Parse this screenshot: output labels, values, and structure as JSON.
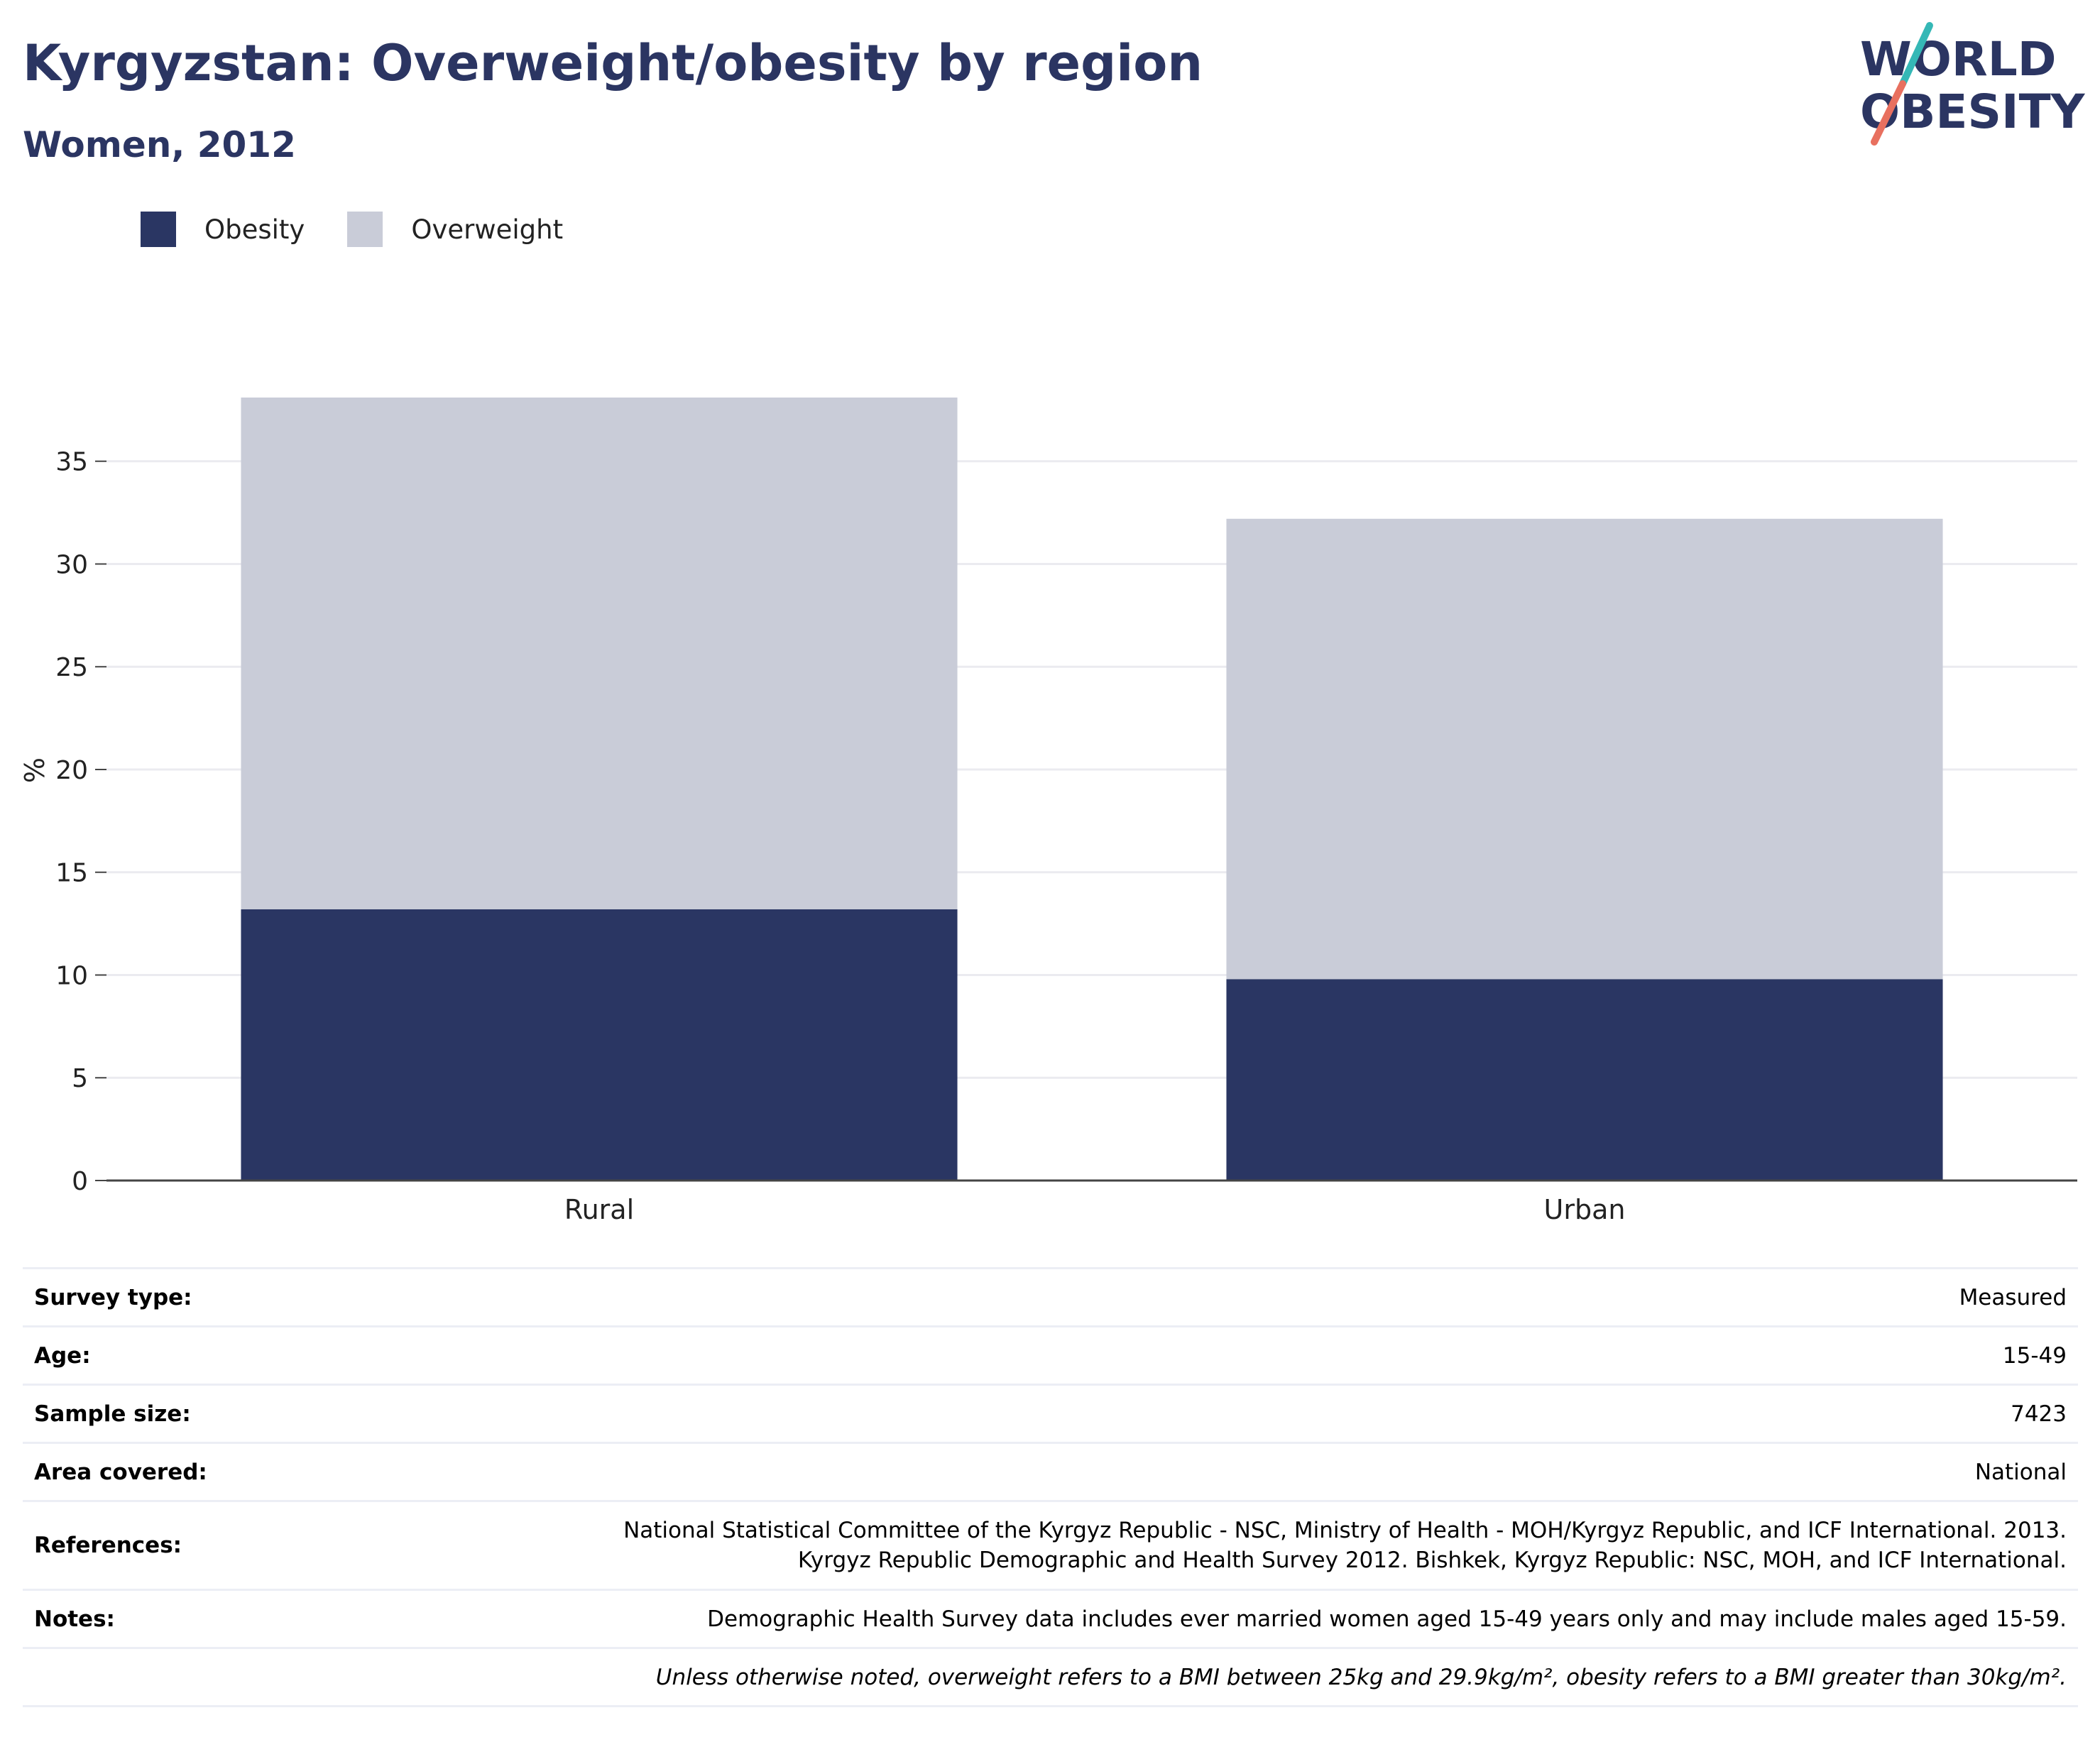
{
  "header": {
    "title": "Kyrgyzstan: Overweight/obesity by region",
    "subtitle": "Women, 2012",
    "logo_line1": "WORLD",
    "logo_line2": "OBESITY"
  },
  "legend": [
    {
      "label": "Obesity",
      "color": "#2a3663"
    },
    {
      "label": "Overweight",
      "color": "#c9ccd8"
    }
  ],
  "chart_data": {
    "type": "bar",
    "stacked": true,
    "categories": [
      "Rural",
      "Urban"
    ],
    "series": [
      {
        "name": "Obesity",
        "color": "#2a3663",
        "values": [
          13.2,
          9.8
        ]
      },
      {
        "name": "Overweight",
        "color": "#c9ccd8",
        "values": [
          24.9,
          22.4
        ]
      }
    ],
    "ylabel": "%",
    "xlabel": "",
    "ylim": [
      0,
      38.1
    ],
    "yticks": [
      0,
      5,
      10,
      15,
      20,
      25,
      30,
      35
    ],
    "grid": true,
    "legend_position": "top-left"
  },
  "info": [
    {
      "key": "Survey type:",
      "value": [
        "Measured"
      ]
    },
    {
      "key": "Age:",
      "value": [
        "15-49"
      ]
    },
    {
      "key": "Sample size:",
      "value": [
        "7423"
      ]
    },
    {
      "key": "Area covered:",
      "value": [
        "National"
      ]
    },
    {
      "key": "References:",
      "value": [
        "National Statistical Committee of the Kyrgyz Republic - NSC, Ministry of Health - MOH/Kyrgyz Republic, and ICF International. 2013.",
        "Kyrgyz Republic Demographic and Health Survey 2012. Bishkek, Kyrgyz Republic: NSC, MOH, and ICF International."
      ]
    },
    {
      "key": "Notes:",
      "value": [
        "Demographic Health Survey data includes ever married women aged 15-49 years only and may include males aged 15-59."
      ]
    }
  ],
  "footnote": "Unless otherwise noted, overweight refers to a BMI between 25kg and 29.9kg/m², obesity refers to a BMI greater than 30kg/m²."
}
